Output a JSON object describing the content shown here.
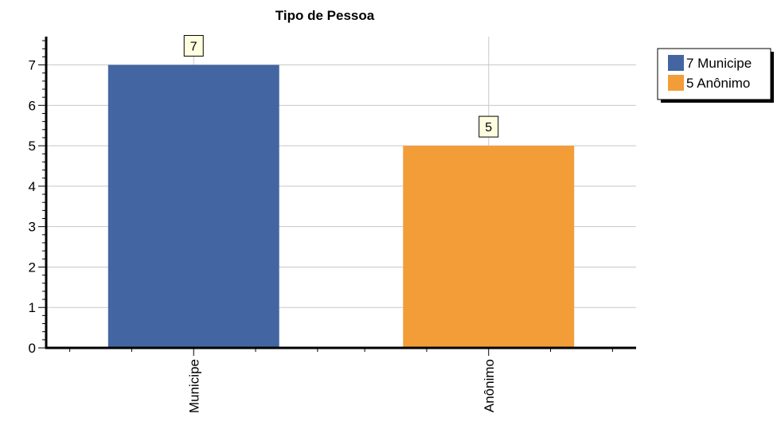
{
  "chart_data": {
    "type": "bar",
    "title": "Tipo de Pessoa",
    "xlabel": "",
    "ylabel": "",
    "categories": [
      "Municipe",
      "Anônimo"
    ],
    "values": [
      7,
      5
    ],
    "colors": [
      "#4366a2",
      "#f29d38"
    ],
    "data_labels": [
      "7",
      "5"
    ],
    "ylim": [
      0,
      7.7
    ],
    "yticks": [
      0,
      1,
      2,
      3,
      4,
      5,
      6,
      7
    ],
    "ytick_labels": [
      "0",
      "1",
      "2",
      "3",
      "4",
      "5",
      "6",
      "7"
    ],
    "grid": true,
    "legend": {
      "placement": "top-right",
      "entries": [
        "7 Municipe",
        "5 Anônimo"
      ]
    }
  }
}
